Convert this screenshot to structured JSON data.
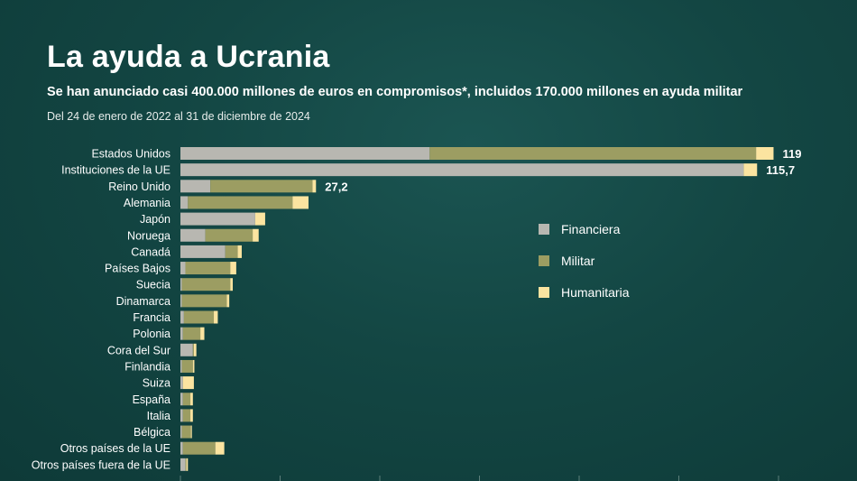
{
  "header": {
    "title": "La ayuda a Ucrania",
    "subtitle": "Se han anunciado casi 400.000 millones de euros en compromisos*, incluidos 170.000 millones en ayuda militar",
    "date_range": "Del 24 de enero de 2022 al 31 de diciembre de 2024"
  },
  "colors": {
    "financiera": "#b8b7b1",
    "militar": "#9c9d62",
    "humanitaria": "#fbe4a0"
  },
  "chart_data": {
    "type": "bar",
    "orientation": "horizontal",
    "stacked": true,
    "categories": [
      "Estados Unidos",
      "Instituciones de la UE",
      "Reino Unido",
      "Alemania",
      "Japón",
      "Noruega",
      "Canadá",
      "Países Bajos",
      "Suecia",
      "Dinamarca",
      "Francia",
      "Polonia",
      "Cora del Sur",
      "Finlandia",
      "Suiza",
      "España",
      "Italia",
      "Bélgica",
      "Otros países de la UE",
      "Otros países fuera de la UE"
    ],
    "series": [
      {
        "name": "Financiera",
        "values": [
          50,
          113,
          6,
          1.5,
          15,
          5,
          9,
          1,
          0.3,
          0.3,
          0.7,
          0.5,
          2.5,
          0.3,
          0.5,
          0.5,
          0.5,
          0.3,
          0.5,
          1
        ]
      },
      {
        "name": "Militar",
        "values": [
          65.5,
          0,
          20.5,
          21,
          0,
          9.5,
          2.5,
          9,
          9.7,
          9,
          6,
          3.5,
          0.2,
          2.2,
          0,
          1.5,
          1.5,
          1.8,
          6.5,
          0.2
        ]
      },
      {
        "name": "Humanitaria",
        "values": [
          3.5,
          2.7,
          0.7,
          3.2,
          2,
          1.2,
          0.8,
          1.2,
          0.5,
          0.5,
          0.8,
          0.8,
          0.5,
          0.3,
          2.2,
          0.5,
          0.5,
          0.2,
          1.8,
          0.3
        ]
      }
    ],
    "data_labels": [
      {
        "category": "Estados Unidos",
        "text": "119"
      },
      {
        "category": "Instituciones de la UE",
        "text": "115,7"
      },
      {
        "category": "Reino Unido",
        "text": "27,2"
      }
    ],
    "xlim": [
      0,
      120
    ],
    "legend": [
      "Financiera",
      "Militar",
      "Humanitaria"
    ],
    "legend_position": "right-middle"
  }
}
